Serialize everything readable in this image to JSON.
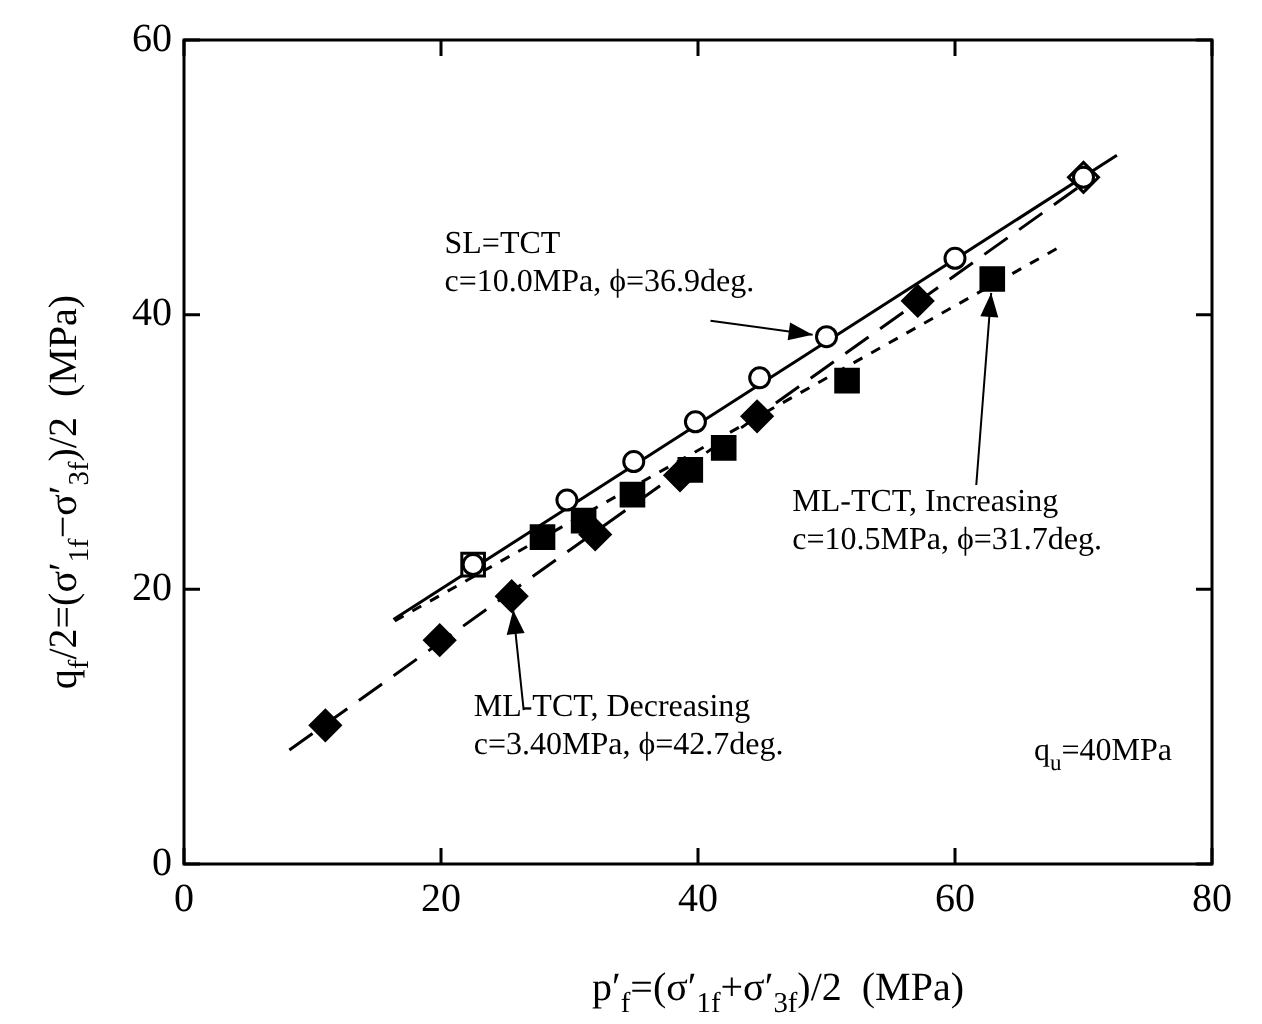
{
  "chart_data": {
    "type": "scatter",
    "xlabel": "p′$_{f}$=(σ′$_{1f}$+σ′$_{3f}$)/2  (MPa)",
    "ylabel": "q$_{f}$/2=(σ′$_{1f}$−σ′$_{3f}$)/2  (MPa)",
    "xlim": [
      0,
      80
    ],
    "ylim": [
      0,
      60
    ],
    "xticks": [
      0,
      20,
      40,
      60,
      80
    ],
    "yticks": [
      0,
      20,
      40,
      60
    ],
    "grid": false,
    "legend": false,
    "series": [
      {
        "type": "line",
        "marker": "none",
        "line_style": "solid",
        "color": "#000000",
        "x": [
          16.3,
          72.6
        ],
        "values": [
          17.8,
          51.6
        ]
      },
      {
        "type": "line",
        "marker": "none",
        "line_style": "dotted",
        "color": "#000000",
        "x": [
          16.4,
          67.9
        ],
        "values": [
          17.7,
          44.8
        ]
      },
      {
        "type": "line",
        "marker": "none",
        "line_style": "dashed",
        "color": "#000000",
        "x": [
          8.2,
          69.5
        ],
        "values": [
          8.3,
          49.2
        ]
      },
      {
        "type": "scatter",
        "marker": "diamond",
        "color": "#000000",
        "colors": [
          "#000000",
          "#000000",
          "#000000",
          "#000000",
          "#000000",
          "#000000",
          "#000000",
          "#ffffff"
        ],
        "x": [
          11,
          19.9,
          25.5,
          32,
          38.6,
          44.6,
          57.1,
          70
        ],
        "values": [
          10.1,
          16.3,
          19.5,
          24,
          28.3,
          32.6,
          41,
          50
        ]
      },
      {
        "type": "scatter",
        "marker": "square",
        "color": "#000000",
        "colors": [
          "#ffffff",
          "#000000",
          "#000000",
          "#000000",
          "#000000",
          "#000000",
          "#000000",
          "#000000"
        ],
        "x": [
          22.5,
          27.9,
          31.1,
          34.9,
          39.4,
          42,
          51.6,
          62.9
        ],
        "values": [
          21.8,
          23.8,
          25,
          26.9,
          28.7,
          30.3,
          35.2,
          42.6
        ]
      },
      {
        "type": "scatter",
        "marker": "circle",
        "color": "#000000",
        "colors": [
          "#ffffff",
          "#ffffff",
          "#ffffff",
          "#ffffff",
          "#ffffff",
          "#ffffff",
          "#ffffff",
          "#ffffff"
        ],
        "x": [
          22.5,
          29.8,
          35,
          39.8,
          44.8,
          50,
          60,
          70
        ],
        "values": [
          21.8,
          26.5,
          29.3,
          32.2,
          35.4,
          38.4,
          44.1,
          50
        ]
      }
    ],
    "annotations": [
      {
        "text": "SL=TCT\nc=10.0MPa, ϕ=36.9deg.",
        "x": 50,
        "y": 38.4
      },
      {
        "text": "ML-TCT, Increasing\nc=10.5MPa, ϕ=31.7deg.",
        "x": 62.9,
        "y": 42.6
      },
      {
        "text": "ML-TCT, Decreasing\nc=3.40MPa, ϕ=42.7deg.",
        "x": 25.5,
        "y": 19.5
      },
      "q$_{u}$=40MPa"
    ]
  }
}
